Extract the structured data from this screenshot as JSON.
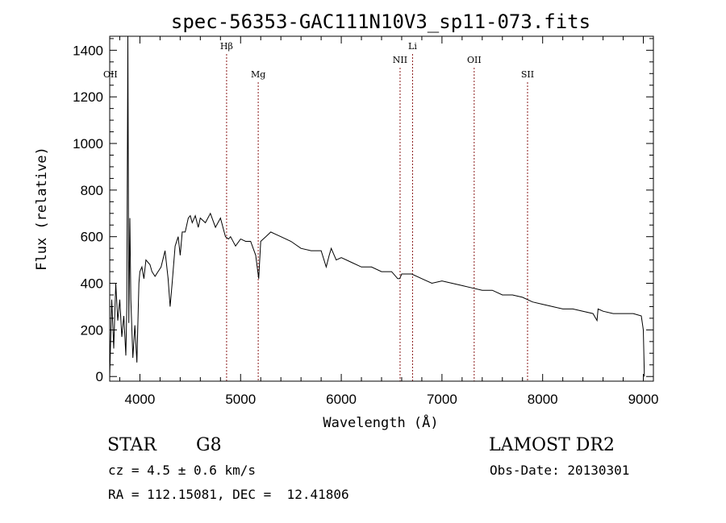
{
  "chart_data": {
    "type": "line",
    "title": "spec-56353-GAC111N10V3_sp11-073.fits",
    "xlabel": "Wavelength (Å)",
    "ylabel": "Flux (relative)",
    "xlim": [
      3700,
      9100
    ],
    "ylim": [
      -20,
      1460
    ],
    "xticks": [
      4000,
      5000,
      6000,
      7000,
      8000,
      9000
    ],
    "yticks": [
      0,
      200,
      400,
      600,
      800,
      1000,
      1200,
      1400
    ],
    "grid": false,
    "series": [
      {
        "x": [
          3700,
          3720,
          3740,
          3760,
          3780,
          3800,
          3820,
          3840,
          3860,
          3870,
          3880,
          3890,
          3900,
          3910,
          3930,
          3950,
          3970,
          3990,
          4000,
          4020,
          4040,
          4060,
          4080,
          4100,
          4120,
          4150,
          4180,
          4210,
          4250,
          4280,
          4300,
          4320,
          4350,
          4380,
          4400,
          4420,
          4450,
          4480,
          4500,
          4520,
          4550,
          4580,
          4600,
          4650,
          4700,
          4750,
          4800,
          4850,
          4880,
          4900,
          4950,
          5000,
          5050,
          5100,
          5150,
          5180,
          5200,
          5250,
          5300,
          5350,
          5400,
          5500,
          5600,
          5700,
          5800,
          5850,
          5880,
          5900,
          5950,
          6000,
          6100,
          6200,
          6300,
          6400,
          6500,
          6560,
          6580,
          6600,
          6700,
          6800,
          6900,
          7000,
          7100,
          7200,
          7300,
          7400,
          7500,
          7600,
          7700,
          7800,
          7900,
          8000,
          8100,
          8200,
          8300,
          8400,
          8500,
          8540,
          8550,
          8600,
          8700,
          8800,
          8900,
          8980,
          9000,
          9010
        ],
        "y": [
          0,
          330,
          120,
          400,
          240,
          330,
          170,
          260,
          90,
          300,
          1460,
          230,
          680,
          330,
          80,
          220,
          60,
          400,
          450,
          470,
          420,
          500,
          490,
          480,
          450,
          430,
          450,
          470,
          540,
          420,
          300,
          400,
          560,
          600,
          520,
          620,
          620,
          680,
          690,
          660,
          690,
          640,
          680,
          660,
          700,
          640,
          680,
          600,
          590,
          600,
          560,
          590,
          580,
          580,
          520,
          420,
          580,
          600,
          620,
          610,
          600,
          580,
          550,
          540,
          540,
          470,
          520,
          550,
          500,
          510,
          490,
          470,
          470,
          450,
          450,
          420,
          420,
          440,
          440,
          420,
          400,
          410,
          400,
          390,
          380,
          370,
          370,
          350,
          350,
          340,
          320,
          310,
          300,
          290,
          290,
          280,
          270,
          240,
          290,
          280,
          270,
          270,
          270,
          260,
          200,
          0
        ]
      }
    ],
    "annotations": [
      {
        "label": "OII",
        "x": 3727,
        "line": false,
        "row": "low"
      },
      {
        "label": "Hβ",
        "x": 4861,
        "line": true,
        "row": "top"
      },
      {
        "label": "Mg",
        "x": 5175,
        "line": true,
        "row": "low"
      },
      {
        "label": "NII",
        "x": 6584,
        "line": true,
        "row": "mid"
      },
      {
        "label": "Li",
        "x": 6708,
        "line": true,
        "row": "top"
      },
      {
        "label": "OII",
        "x": 7320,
        "line": true,
        "row": "mid"
      },
      {
        "label": "SII",
        "x": 7850,
        "line": true,
        "row": "low"
      }
    ]
  },
  "info": {
    "class_label": "STAR",
    "subclass": "G8",
    "survey": "LAMOST DR2",
    "cz": "cz = 4.5 ± 0.6 km/s",
    "obs_date": "Obs-Date: 20130301",
    "coords": "RA = 112.15081, DEC =  12.41806"
  },
  "colors": {
    "line_marker": "#8b1a1a",
    "spectrum": "#000000"
  }
}
